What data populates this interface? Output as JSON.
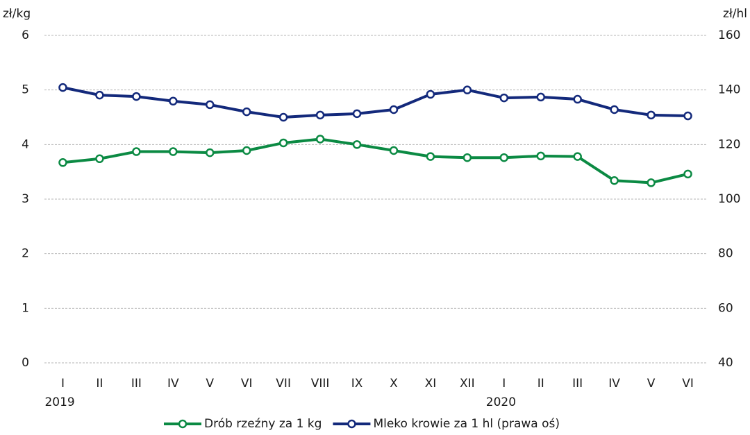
{
  "chart_data": {
    "type": "line",
    "y_label": "zł/kg",
    "y2_label": "zł/hl",
    "categories": [
      "I",
      "II",
      "III",
      "IV",
      "V",
      "VI",
      "VII",
      "VIII",
      "IX",
      "X",
      "XI",
      "XII",
      "I",
      "II",
      "III",
      "IV",
      "V",
      "VI"
    ],
    "category_groups": [
      "2019",
      null,
      null,
      null,
      null,
      null,
      null,
      null,
      null,
      null,
      null,
      null,
      "2020",
      null,
      null,
      null,
      null,
      null
    ],
    "series": [
      {
        "name": "Drób rzeźny za 1 kg",
        "color": "#0b8a43",
        "axis": "y",
        "values": [
          3.67,
          3.74,
          3.87,
          3.87,
          3.85,
          3.89,
          4.03,
          4.1,
          4.0,
          3.89,
          3.78,
          3.76,
          3.76,
          3.79,
          3.78,
          3.34,
          3.3,
          3.46
        ]
      },
      {
        "name": "Mleko krowie za 1 hl (prawa oś)",
        "color": "#13297b",
        "axis": "y2",
        "values": [
          140.9,
          138.1,
          137.6,
          135.9,
          134.6,
          132.0,
          130.0,
          130.8,
          131.3,
          132.8,
          138.4,
          140.0,
          137.1,
          137.4,
          136.6,
          132.8,
          130.8,
          130.5
        ]
      }
    ],
    "ylim": [
      0,
      6
    ],
    "yticks": [
      0,
      1,
      2,
      3,
      4,
      5,
      6
    ],
    "y2lim": [
      40,
      160
    ],
    "y2ticks": [
      40,
      60,
      80,
      100,
      120,
      140,
      160
    ],
    "grid": true,
    "legend": "bottom"
  }
}
